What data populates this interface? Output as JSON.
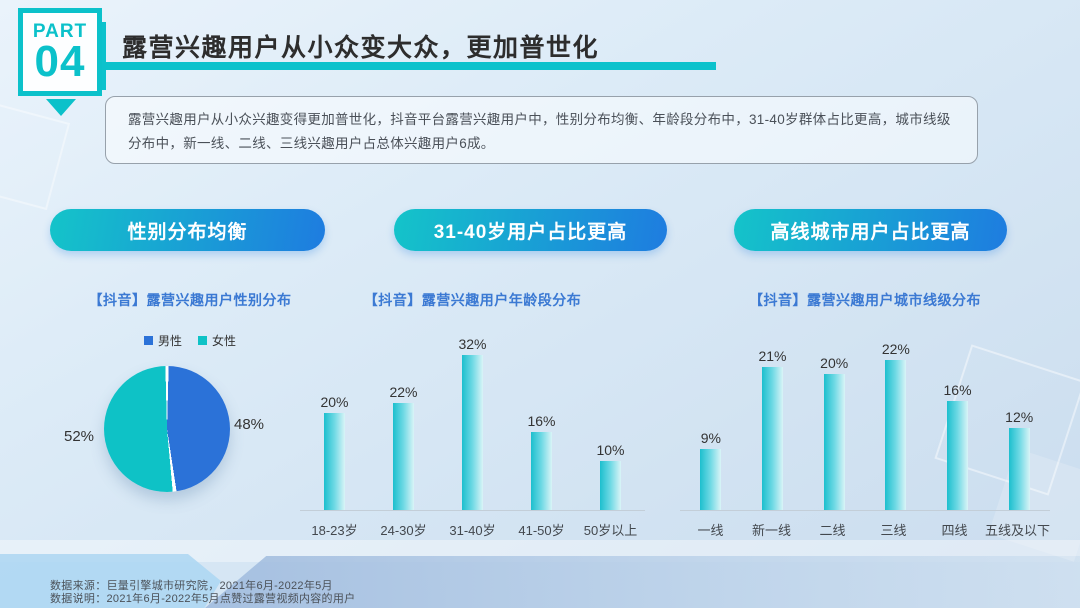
{
  "badge": {
    "part_label": "PART",
    "part_number": "04"
  },
  "header": {
    "title": "露营兴趣用户从小众变大众，更加普世化"
  },
  "summary": {
    "text": "露营兴趣用户从小众兴趣变得更加普世化，抖音平台露营兴趣用户中，性别分布均衡、年龄段分布中，31-40岁群体占比更高，城市线级分布中，新一线、二线、三线兴趣用户占总体兴趣用户6成。"
  },
  "highlight_buttons": [
    {
      "label": "性别分布均衡"
    },
    {
      "label": "31-40岁用户占比更高"
    },
    {
      "label": "高线城市用户占比更高"
    }
  ],
  "colors": {
    "accent_teal": "#0cc2cc",
    "pie_blue": "#2b72d8",
    "pie_teal": "#0ec2c6",
    "button_gradient": [
      "#14c4c9",
      "#1e7ce0"
    ],
    "bar_gradient": [
      "#1cbfce",
      "#d9f4f7"
    ],
    "chart_title_blue": "#3b79d3"
  },
  "chart_data": [
    {
      "type": "pie",
      "title": "【抖音】露营兴趣用户性别分布",
      "legend_position": "top",
      "slices": [
        {
          "label": "男性",
          "value": 48,
          "data_label": "48%",
          "color": "#2b72d8"
        },
        {
          "label": "女性",
          "value": 52,
          "data_label": "52%",
          "color": "#0ec2c6"
        }
      ]
    },
    {
      "type": "bar",
      "title": "【抖音】露营兴趣用户年龄段分布",
      "categories": [
        "18-23岁",
        "24-30岁",
        "31-40岁",
        "41-50岁",
        "50岁以上"
      ],
      "values": [
        20,
        22,
        32,
        16,
        10
      ],
      "data_labels": [
        "20%",
        "22%",
        "32%",
        "16%",
        "10%"
      ],
      "ylim": [
        0,
        35
      ],
      "grid": false,
      "xlabel": "",
      "ylabel": ""
    },
    {
      "type": "bar",
      "title": "【抖音】露营兴趣用户城市线级分布",
      "categories": [
        "一线",
        "新一线",
        "二线",
        "三线",
        "四线",
        "五线及以下"
      ],
      "values": [
        9,
        21,
        20,
        22,
        16,
        12
      ],
      "data_labels": [
        "9%",
        "21%",
        "20%",
        "22%",
        "16%",
        "12%"
      ],
      "ylim": [
        0,
        25
      ],
      "grid": false,
      "xlabel": "",
      "ylabel": ""
    }
  ],
  "footer": {
    "source": "数据来源：巨量引擎城市研究院，2021年6月-2022年5月",
    "note": "数据说明：2021年6月-2022年5月点赞过露营视频内容的用户"
  }
}
